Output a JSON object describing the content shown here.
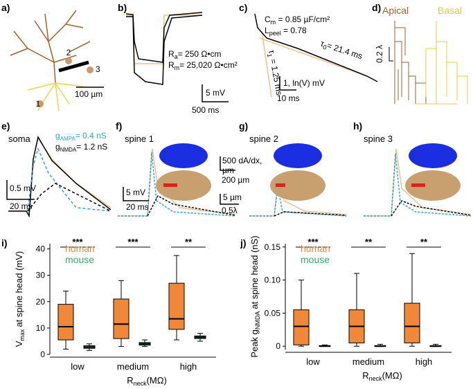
{
  "panels": {
    "a": {
      "letter": "a)",
      "scale": "100 µm",
      "sites": [
        "1",
        "2",
        "3"
      ]
    },
    "b": {
      "letter": "b)",
      "ra": [
        "R",
        "a",
        "= 250 Ω•cm"
      ],
      "rm": [
        "R",
        "m",
        "= 25,020 Ω•cm²"
      ],
      "vscale": "5 mV",
      "tscale": "500 ms"
    },
    "c": {
      "letter": "c)",
      "cm": [
        "C",
        "m",
        " = 0.85 µF/cm²"
      ],
      "lpeel": [
        "L",
        "peel",
        " = 0.78"
      ],
      "tau0": [
        "τ",
        "0",
        "= 21.4 ms"
      ],
      "tau1": [
        "τ",
        "1",
        " = 1.25 ms"
      ],
      "vscale": "1, ln(V) mV",
      "tscale": "10 ms"
    },
    "d": {
      "letter": "d)",
      "apical": "Apical",
      "basal": "Basal",
      "scale": "0.2 λ"
    },
    "e": {
      "letter": "e)",
      "title": "soma",
      "ampa": [
        "g",
        "AMPA",
        "= 0.4 nS"
      ],
      "nmda": [
        "g",
        "NMDA",
        "= 1.2 nS"
      ],
      "vscale": "0.5 mV",
      "tscale": "20 ms"
    },
    "f": {
      "letter": "f)",
      "title": "spine 1",
      "vscale": "5 mV",
      "tscale": "20 ms",
      "dadx": "500 dA/dx,",
      "um": "µm",
      "um200": "200 µm",
      "um5": "5 µm",
      "lambda": "0.5λ"
    },
    "g": {
      "letter": "g)",
      "title": "spine 2"
    },
    "h": {
      "letter": "h)",
      "title": "spine 3"
    }
  },
  "chart_data": [
    {
      "type": "box",
      "letter": "i)",
      "ylabel": [
        "V",
        "max",
        "at spine head (mV)"
      ],
      "xlabel": [
        "R",
        "neck",
        "(MΩ)"
      ],
      "categories": [
        "low",
        "medium",
        "high"
      ],
      "significance": [
        "***",
        "***",
        "**"
      ],
      "ylim": [
        0,
        42
      ],
      "yticks": [
        0,
        10,
        20,
        30,
        40
      ],
      "series": [
        {
          "name": "human",
          "color": "#f0883a",
          "min": [
            2,
            3,
            5.5
          ],
          "q1": [
            5.5,
            6,
            9.5
          ],
          "median": [
            10.5,
            11.5,
            13.5
          ],
          "q3": [
            19,
            21,
            27
          ],
          "max": [
            24,
            28,
            37.5
          ]
        },
        {
          "name": "mouse",
          "color": "#3aaa6e",
          "min": [
            1.5,
            3,
            5
          ],
          "q1": [
            2.3,
            3.5,
            6
          ],
          "median": [
            2.8,
            4,
            6.5
          ],
          "q3": [
            3.3,
            4.5,
            7
          ],
          "max": [
            4,
            5.5,
            8
          ]
        }
      ]
    },
    {
      "type": "box",
      "letter": "j)",
      "ylabel": [
        "Peak g",
        "NMDA",
        "at spine head (nS)"
      ],
      "xlabel": [
        "R",
        "neck",
        "(MΩ)"
      ],
      "categories": [
        "low",
        "medium",
        "high"
      ],
      "significance": [
        "***",
        "**",
        "**"
      ],
      "ylim": [
        -0.005,
        0.155
      ],
      "yticks": [
        0,
        0.05,
        {
          "value": 0.1,
          "label": "0.10"
        },
        0.15
      ],
      "series": [
        {
          "name": "human",
          "color": "#f0883a",
          "min": [
            0,
            0,
            0
          ],
          "q1": [
            0.002,
            0.005,
            0.005
          ],
          "median": [
            0.03,
            0.03,
            0.03
          ],
          "q3": [
            0.055,
            0.055,
            0.065
          ],
          "max": [
            0.1,
            0.11,
            0.14
          ]
        },
        {
          "name": "mouse",
          "color": "#3aaa6e",
          "min": [
            0,
            0,
            0
          ],
          "q1": [
            0,
            0,
            0
          ],
          "median": [
            0,
            0,
            0
          ],
          "q3": [
            0.001,
            0.001,
            0.001
          ],
          "max": [
            0.002,
            0.003,
            0.003
          ]
        }
      ]
    }
  ]
}
